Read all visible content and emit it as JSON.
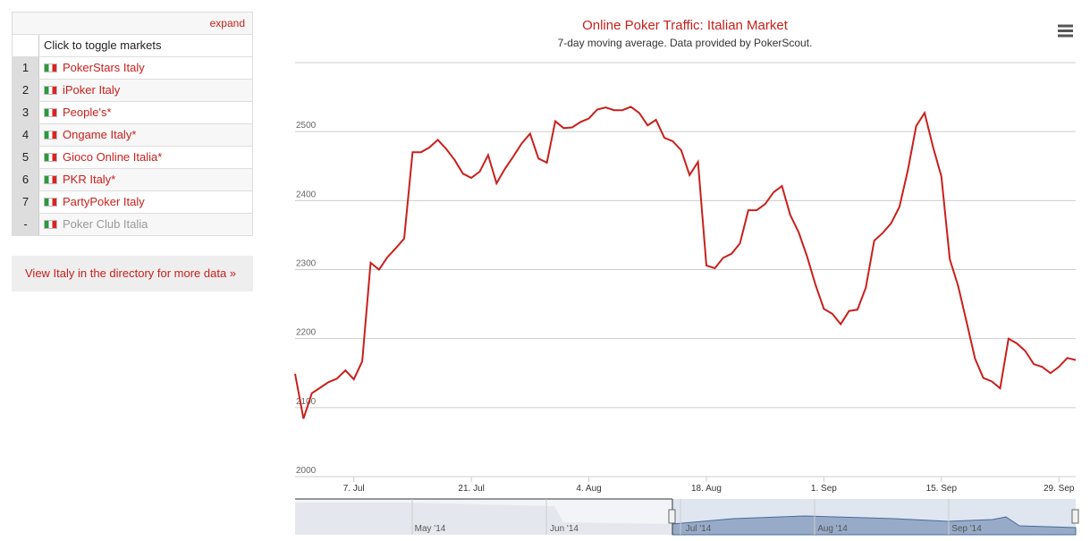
{
  "panel": {
    "expand": "expand",
    "header": "Click to toggle markets",
    "rows": [
      {
        "num": "1",
        "name": "PokerStars Italy"
      },
      {
        "num": "2",
        "name": "iPoker Italy"
      },
      {
        "num": "3",
        "name": "People's*"
      },
      {
        "num": "4",
        "name": "Ongame Italy*"
      },
      {
        "num": "5",
        "name": "Gioco Online Italia*"
      },
      {
        "num": "6",
        "name": "PKR Italy*"
      },
      {
        "num": "7",
        "name": "PartyPoker Italy"
      },
      {
        "num": "-",
        "name": "Poker Club Italia"
      }
    ],
    "link": "View Italy in the directory for more data »"
  },
  "chart_data": {
    "type": "line",
    "title": "Online Poker Traffic: Italian Market",
    "subtitle": "7-day moving average. Data provided by PokerScout.",
    "xlim": [
      "2014-06-30",
      "2014-10-01"
    ],
    "ylim": [
      2000,
      2600
    ],
    "yticks": [
      2000,
      2100,
      2200,
      2300,
      2400,
      2500
    ],
    "grid": true,
    "xticks": [
      {
        "value": "2014-07-07",
        "label": "7. Jul"
      },
      {
        "value": "2014-07-21",
        "label": "21. Jul"
      },
      {
        "value": "2014-08-04",
        "label": "4. Aug"
      },
      {
        "value": "2014-08-18",
        "label": "18. Aug"
      },
      {
        "value": "2014-09-01",
        "label": "1. Sep"
      },
      {
        "value": "2014-09-15",
        "label": "15. Sep"
      },
      {
        "value": "2014-09-29",
        "label": "29. Sep"
      }
    ],
    "x_start": "2014-06-30",
    "series": [
      {
        "name": "PokerStars Italy",
        "color": "#c8201c",
        "values": [
          2149,
          2084,
          2121,
          2129,
          2137,
          2142,
          2154,
          2141,
          2167,
          2310,
          2300,
          2318,
          2331,
          2345,
          2470,
          2470,
          2477,
          2488,
          2475,
          2459,
          2439,
          2433,
          2442,
          2466,
          2425,
          2446,
          2464,
          2483,
          2497,
          2461,
          2455,
          2515,
          2505,
          2506,
          2514,
          2519,
          2532,
          2535,
          2531,
          2531,
          2536,
          2527,
          2509,
          2517,
          2491,
          2486,
          2473,
          2437,
          2456,
          2306,
          2302,
          2317,
          2323,
          2338,
          2386,
          2386,
          2395,
          2412,
          2421,
          2379,
          2354,
          2319,
          2278,
          2243,
          2236,
          2221,
          2240,
          2242,
          2274,
          2342,
          2353,
          2367,
          2391,
          2444,
          2508,
          2527,
          2478,
          2435,
          2315,
          2276,
          2224,
          2171,
          2143,
          2138,
          2128,
          2200,
          2193,
          2182,
          2163,
          2159,
          2150,
          2159,
          2172,
          2169
        ]
      }
    ],
    "navigator": [
      "May '14",
      "Jun '14",
      "Jul '14",
      "Aug '14",
      "Sep '14"
    ]
  }
}
